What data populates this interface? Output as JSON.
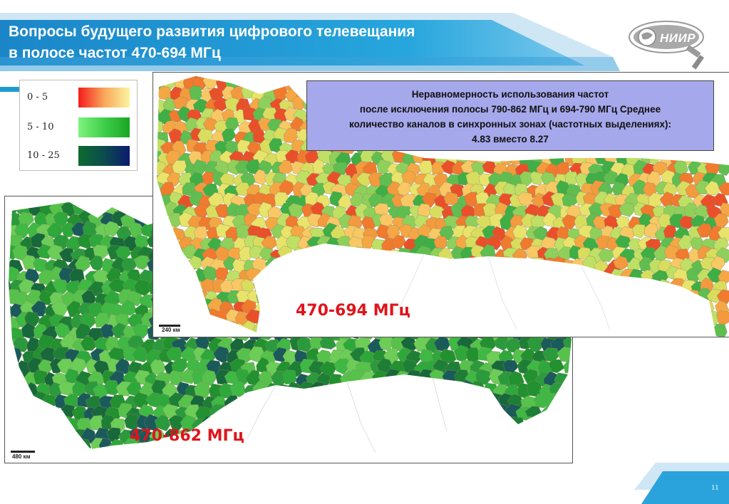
{
  "slide": {
    "title_line1": "Вопросы будущего развития цифрового телевещания",
    "title_line2": "в полосе частот 470-694 МГц",
    "logo_text": "НИИР",
    "page_number": "11"
  },
  "legend": {
    "items": [
      {
        "label": "0 - 5",
        "color_from": "#f51c1c",
        "color_to": "#fbf5a0"
      },
      {
        "label": "5 - 10",
        "color_from": "#7ef27e",
        "color_to": "#1aa524"
      },
      {
        "label": "10 - 25",
        "color_from": "#0d6b2f",
        "color_to": "#0b1b6e"
      }
    ]
  },
  "map_full": {
    "band_label": "470-862 МГц",
    "scale_label": "480 км",
    "palette": [
      "#2ea83a",
      "#3fb844",
      "#56c24b",
      "#22912f",
      "#1d7f35",
      "#17683a",
      "#6ccd57",
      "#2b9a3c",
      "#1a5a5a"
    ]
  },
  "map_reduced": {
    "band_label": "470-694 МГц",
    "scale_label": "240 км",
    "palette": [
      "#f07a2e",
      "#f5a744",
      "#f8c865",
      "#e8e36a",
      "#bfe064",
      "#8fd05a",
      "#5fbe4f",
      "#e9502a",
      "#f29a3d",
      "#d9dd5e",
      "#3fae45"
    ]
  },
  "info_box": {
    "line1": "Неравномерность использования частот",
    "line2": "после исключения полосы 790-862 МГц и 694-790 МГц Среднее",
    "line3": "количество каналов в синхронных зонах (частотных выделениях):",
    "line4": "4.83 вместо 8.27"
  }
}
